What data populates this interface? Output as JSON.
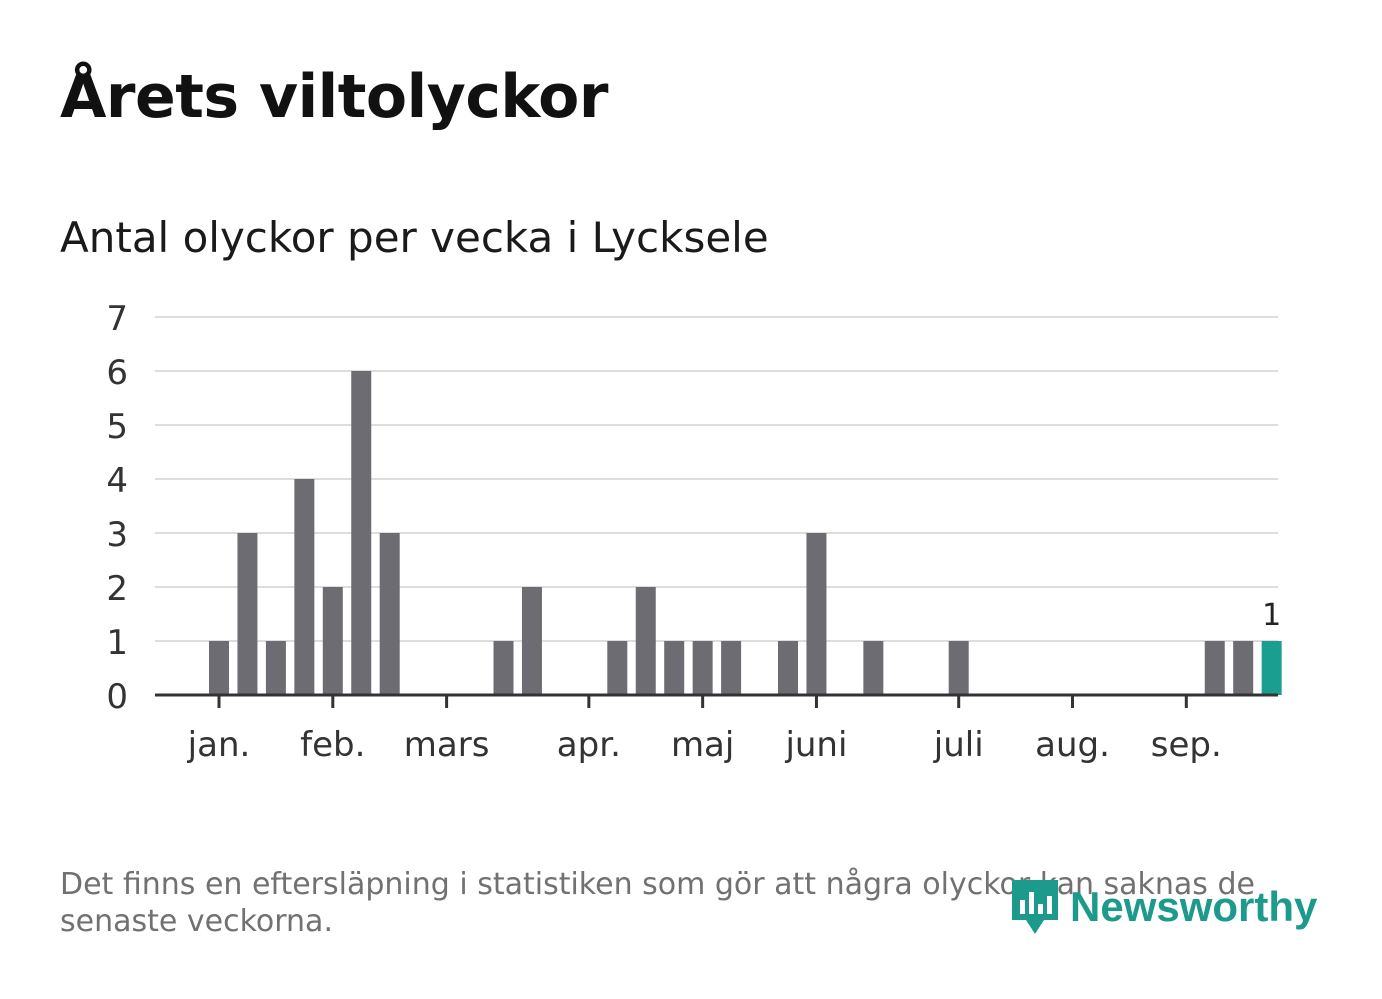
{
  "header": {
    "title": "Årets viltolyckor",
    "subtitle": "Antal olyckor per vecka i Lycksele"
  },
  "colors": {
    "bar": "#6d6c72",
    "highlight": "#1a9e8f",
    "grid": "#dddddd",
    "axis": "#333333"
  },
  "chart_data": {
    "type": "bar",
    "xlabel": "",
    "ylabel": "",
    "ylim": [
      0,
      7
    ],
    "yticks": [
      "0",
      "1",
      "2",
      "3",
      "4",
      "5",
      "6",
      "7"
    ],
    "x": [
      1,
      2,
      3,
      4,
      5,
      6,
      7,
      8,
      9,
      10,
      11,
      12,
      13,
      14,
      15,
      16,
      17,
      18,
      19,
      20,
      21,
      22,
      23,
      24,
      25,
      26,
      27,
      28,
      29,
      30,
      31,
      32,
      33,
      34,
      35,
      36,
      37,
      38
    ],
    "values": [
      1,
      3,
      1,
      4,
      2,
      6,
      3,
      0,
      0,
      0,
      1,
      2,
      0,
      0,
      1,
      2,
      1,
      1,
      1,
      0,
      1,
      3,
      0,
      1,
      0,
      0,
      1,
      0,
      0,
      0,
      0,
      0,
      0,
      0,
      0,
      1,
      1,
      1
    ],
    "highlight_index": 37,
    "value_label": "1",
    "month_labels": [
      {
        "label": "jan.",
        "week": 1
      },
      {
        "label": "feb.",
        "week": 5
      },
      {
        "label": "mars",
        "week": 9
      },
      {
        "label": "apr.",
        "week": 14
      },
      {
        "label": "maj",
        "week": 18
      },
      {
        "label": "juni",
        "week": 22
      },
      {
        "label": "juli",
        "week": 27
      },
      {
        "label": "aug.",
        "week": 31
      },
      {
        "label": "sep.",
        "week": 35
      }
    ],
    "grid": true,
    "legend": "none"
  },
  "footer": {
    "note": "Det finns en eftersläpning i statistiken som gör att några olyckor kan saknas de senaste veckorna.",
    "logo_text": "Newsworthy",
    "logo_icon": "newsworthy-chart-icon"
  }
}
